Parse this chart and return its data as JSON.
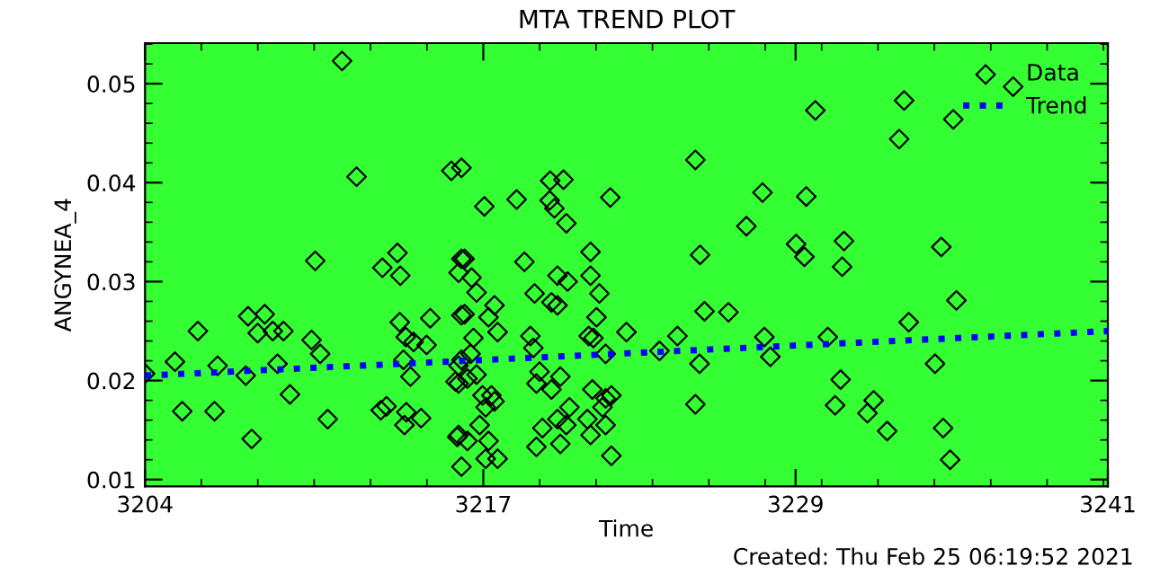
{
  "chart_data": {
    "type": "scatter",
    "title": "MTA TREND PLOT",
    "xlabel": "Time",
    "ylabel": "ANGYNEA_4",
    "annotations": [
      "Created: Thu Feb 25 06:19:52 2021"
    ],
    "xlim": [
      3204,
      3241
    ],
    "xticks": [
      3204,
      3217,
      3229,
      3241
    ],
    "ylim": [
      0.0093,
      0.0541
    ],
    "yticks": [
      0.01,
      0.02,
      0.03,
      0.04,
      0.05
    ],
    "grid": false,
    "legend": "top right",
    "series": [
      {
        "name": "Data",
        "marker": "diamond",
        "color": "#000000",
        "x": [
          3211.57,
          3212.13,
          3210.54,
          3213.12,
          3213.7,
          3213.81,
          3206.03,
          3207.96,
          3208.6,
          3208.33,
          3208.91,
          3209.32,
          3205.15,
          3206.79,
          3207.87,
          3209.09,
          3210.4,
          3210.73,
          3209.57,
          3211.02,
          3205.43,
          3206.67,
          3208.1,
          3213.79,
          3214.96,
          3213.93,
          3214.2,
          3214.02,
          3214.32,
          3214.82,
          3213.06,
          3213.28,
          3214.04,
          3213.97,
          3214.61,
          3204.0,
          3215.77,
          3216.16,
          3216.16,
          3216.05,
          3216.16,
          3216.05,
          3216.0,
          3216.16,
          3217.04,
          3218.28,
          3219.57,
          3220.08,
          3219.55,
          3219.73,
          3220.19,
          3221.88,
          3221.12,
          3218.58,
          3216.28,
          3216.55,
          3216.74,
          3219.85,
          3220.24,
          3221.12,
          3218.97,
          3219.62,
          3219.85,
          3221.46,
          3221.35,
          3217.43,
          3217.2,
          3216.28,
          3217.55,
          3216.62,
          3216.51,
          3216.16,
          3216.74,
          3216.39,
          3216.05,
          3215.93,
          3218.81,
          3218.92,
          3219.16,
          3219.04,
          3219.96,
          3219.62,
          3221.05,
          3221.23,
          3221.7,
          3222.5,
          3221.19,
          3221.7,
          3221.92,
          3216.97,
          3217.31,
          3217.09,
          3217.43,
          3216.86,
          3217.2,
          3217.55,
          3217.09,
          3216.05,
          3216.39,
          3219.27,
          3219.04,
          3219.85,
          3219.96,
          3220.31,
          3220.19,
          3221.0,
          3221.12,
          3221.7,
          3221.92,
          3221.58,
          3225.15,
          3227.73,
          3227.11,
          3225.33,
          3225.5,
          3226.42,
          3224.46,
          3223.77,
          3225.31,
          3228.03,
          3227.8,
          3225.15,
          3237.36,
          3229.76,
          3233.17,
          3235.06,
          3232.98,
          3229.41,
          3229.02,
          3229.34,
          3230.86,
          3230.79,
          3234.6,
          3235.18,
          3233.35,
          3230.24,
          3234.36,
          3230.73,
          3230.52,
          3232.0,
          3231.76,
          3232.52,
          3234.67,
          3234.94
        ],
        "values": [
          0.0523,
          0.0406,
          0.0321,
          0.0314,
          0.0329,
          0.0306,
          0.025,
          0.0265,
          0.0267,
          0.0248,
          0.025,
          0.025,
          0.0219,
          0.0215,
          0.0205,
          0.0217,
          0.0241,
          0.0227,
          0.0186,
          0.0161,
          0.0169,
          0.0169,
          0.0141,
          0.0259,
          0.0263,
          0.0221,
          0.0204,
          0.0244,
          0.0239,
          0.0236,
          0.017,
          0.0174,
          0.0168,
          0.0155,
          0.0162,
          0.0207,
          0.0412,
          0.0415,
          0.0323,
          0.0309,
          0.0266,
          0.0197,
          0.0143,
          0.0113,
          0.0376,
          0.0383,
          0.0402,
          0.0403,
          0.0382,
          0.0374,
          0.0359,
          0.0385,
          0.033,
          0.032,
          0.0323,
          0.0304,
          0.0289,
          0.0306,
          0.03,
          0.0306,
          0.0288,
          0.0279,
          0.0276,
          0.0288,
          0.0264,
          0.0276,
          0.0264,
          0.0267,
          0.0249,
          0.0243,
          0.0227,
          0.0221,
          0.0206,
          0.0202,
          0.0215,
          0.0199,
          0.0245,
          0.0233,
          0.0209,
          0.0197,
          0.0204,
          0.0191,
          0.0245,
          0.0243,
          0.0227,
          0.0249,
          0.0191,
          0.0182,
          0.0185,
          0.0185,
          0.0185,
          0.0173,
          0.0179,
          0.0155,
          0.0139,
          0.0121,
          0.0121,
          0.0145,
          0.0139,
          0.0152,
          0.0133,
          0.0161,
          0.0136,
          0.0173,
          0.0155,
          0.0161,
          0.0145,
          0.0155,
          0.0124,
          0.0173,
          0.0423,
          0.039,
          0.0356,
          0.0327,
          0.027,
          0.0269,
          0.0245,
          0.023,
          0.0217,
          0.0224,
          0.0244,
          0.0176,
          0.0497,
          0.0473,
          0.0483,
          0.0464,
          0.0444,
          0.0386,
          0.0338,
          0.0325,
          0.0341,
          0.0315,
          0.0335,
          0.0281,
          0.0259,
          0.0244,
          0.0217,
          0.0201,
          0.0175,
          0.018,
          0.0167,
          0.0149,
          0.0152,
          0.012
        ]
      },
      {
        "name": "Trend",
        "type": "line",
        "line_style": "dotted",
        "color": "#0000ff",
        "x": [
          3204,
          3241
        ],
        "values": [
          0.0205,
          0.025
        ]
      }
    ]
  }
}
